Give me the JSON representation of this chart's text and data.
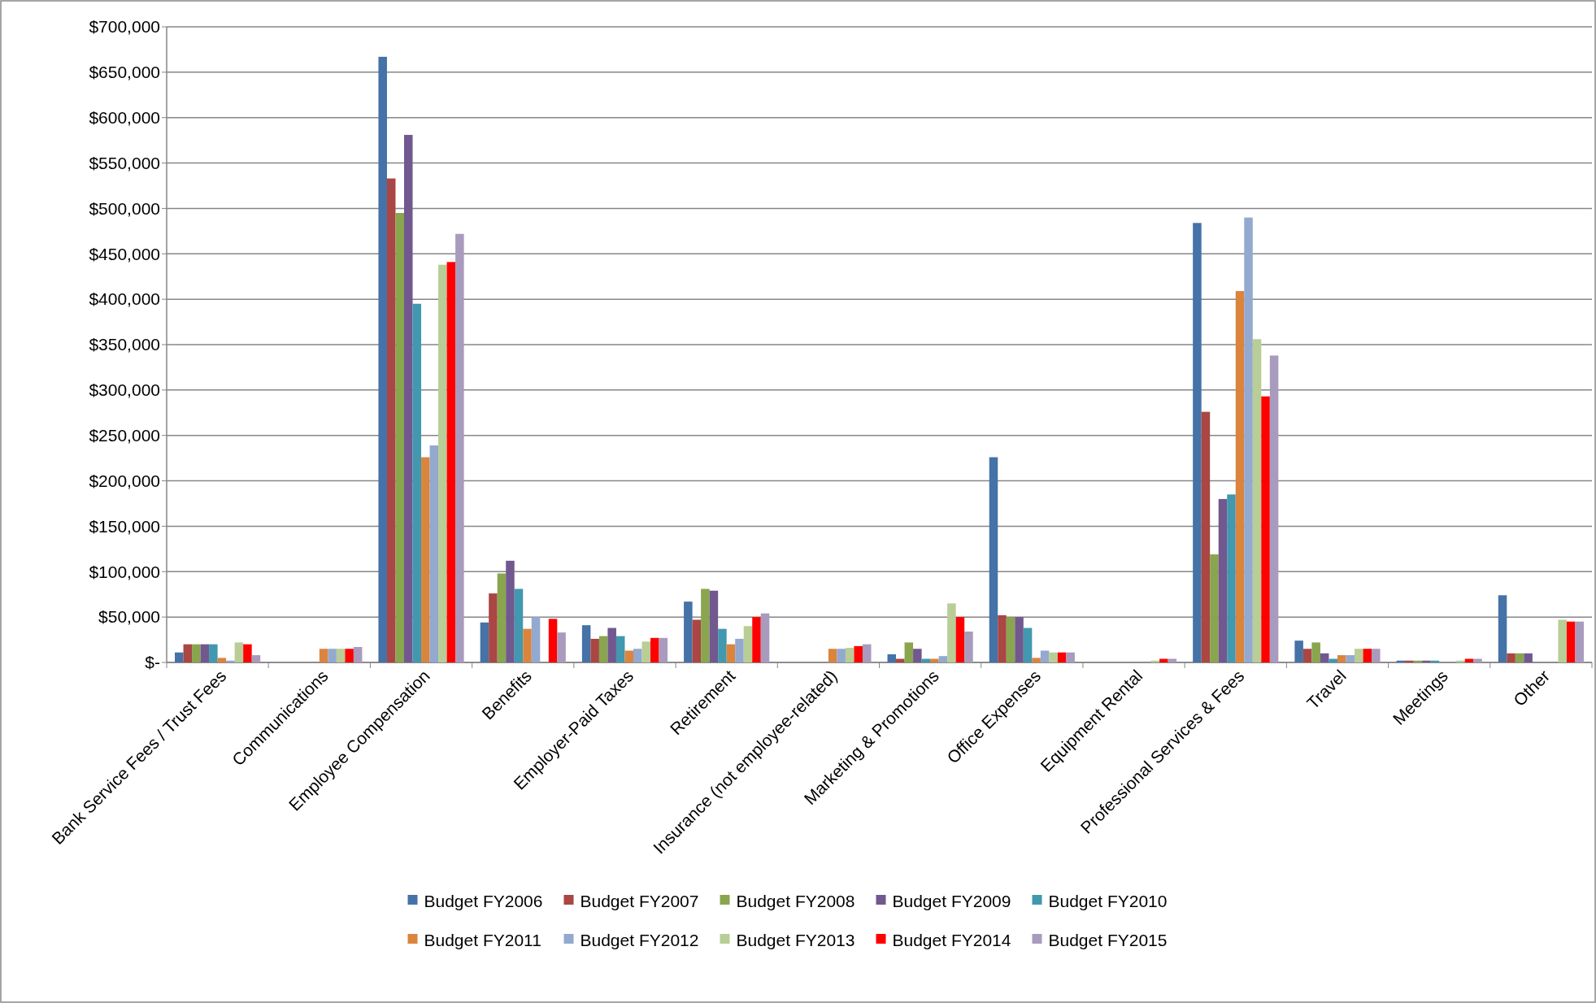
{
  "chart_data": {
    "type": "bar",
    "categories": [
      "Bank Service Fees / Trust Fees",
      "Communications",
      "Employee Compensation",
      "Benefits",
      "Employer-Paid Taxes",
      "Retirement",
      "Insurance (not employee-related)",
      "Marketing & Promotions",
      "Office Expenses",
      "Equipment Rental",
      "Professional Services & Fees",
      "Travel",
      "Meetings",
      "Other"
    ],
    "series": [
      {
        "name": "Budget FY2006",
        "color": "#4572a7",
        "values": [
          11000,
          null,
          667000,
          44000,
          41000,
          67000,
          null,
          9000,
          226000,
          null,
          484000,
          24000,
          2000,
          74000
        ]
      },
      {
        "name": "Budget FY2007",
        "color": "#aa4643",
        "values": [
          20000,
          null,
          533000,
          76000,
          26000,
          47000,
          null,
          4000,
          52000,
          null,
          276000,
          15000,
          2000,
          10000
        ]
      },
      {
        "name": "Budget FY2008",
        "color": "#89a54e",
        "values": [
          20000,
          null,
          495000,
          98000,
          29000,
          81000,
          null,
          22000,
          50000,
          null,
          119000,
          22000,
          2000,
          10000
        ]
      },
      {
        "name": "Budget FY2009",
        "color": "#71588f",
        "values": [
          20000,
          null,
          581000,
          112000,
          38000,
          79000,
          null,
          15000,
          50000,
          null,
          180000,
          10000,
          2000,
          10000
        ]
      },
      {
        "name": "Budget FY2010",
        "color": "#4198af",
        "values": [
          20000,
          null,
          395000,
          81000,
          29000,
          37000,
          null,
          4000,
          38000,
          null,
          185000,
          4000,
          2000,
          null
        ]
      },
      {
        "name": "Budget FY2011",
        "color": "#db843d",
        "values": [
          5000,
          15000,
          226000,
          37000,
          13000,
          20000,
          15000,
          4000,
          5000,
          null,
          409000,
          8000,
          null,
          null
        ]
      },
      {
        "name": "Budget FY2012",
        "color": "#93a9cf",
        "values": [
          2000,
          15000,
          239000,
          50000,
          15000,
          26000,
          15000,
          7000,
          13000,
          null,
          490000,
          8000,
          null,
          null
        ]
      },
      {
        "name": "Budget FY2013",
        "color": "#b9cd96",
        "values": [
          22000,
          15000,
          438000,
          null,
          23000,
          40000,
          16000,
          65000,
          11000,
          2000,
          356000,
          15000,
          2000,
          47000
        ]
      },
      {
        "name": "Budget FY2014",
        "color": "#ff0000",
        "values": [
          20000,
          15000,
          441000,
          48000,
          27000,
          50000,
          18000,
          50000,
          11000,
          4000,
          293000,
          15000,
          4000,
          45000
        ]
      },
      {
        "name": "Budget FY2015",
        "color": "#a99bbd",
        "values": [
          8000,
          17000,
          472000,
          33000,
          27000,
          54000,
          20000,
          34000,
          11000,
          4000,
          338000,
          15000,
          4000,
          45000
        ]
      }
    ],
    "ylim": [
      0,
      700000
    ],
    "yticks": [
      {
        "value": 0,
        "label": "$-"
      },
      {
        "value": 50000,
        "label": "$50,000"
      },
      {
        "value": 100000,
        "label": "$100,000"
      },
      {
        "value": 150000,
        "label": "$150,000"
      },
      {
        "value": 200000,
        "label": "$200,000"
      },
      {
        "value": 250000,
        "label": "$250,000"
      },
      {
        "value": 300000,
        "label": "$300,000"
      },
      {
        "value": 350000,
        "label": "$350,000"
      },
      {
        "value": 400000,
        "label": "$400,000"
      },
      {
        "value": 450000,
        "label": "$450,000"
      },
      {
        "value": 500000,
        "label": "$500,000"
      },
      {
        "value": 550000,
        "label": "$550,000"
      },
      {
        "value": 600000,
        "label": "$600,000"
      },
      {
        "value": 650000,
        "label": "$650,000"
      },
      {
        "value": 700000,
        "label": "$700,000"
      }
    ],
    "grid": "y",
    "legend": "bottom"
  }
}
